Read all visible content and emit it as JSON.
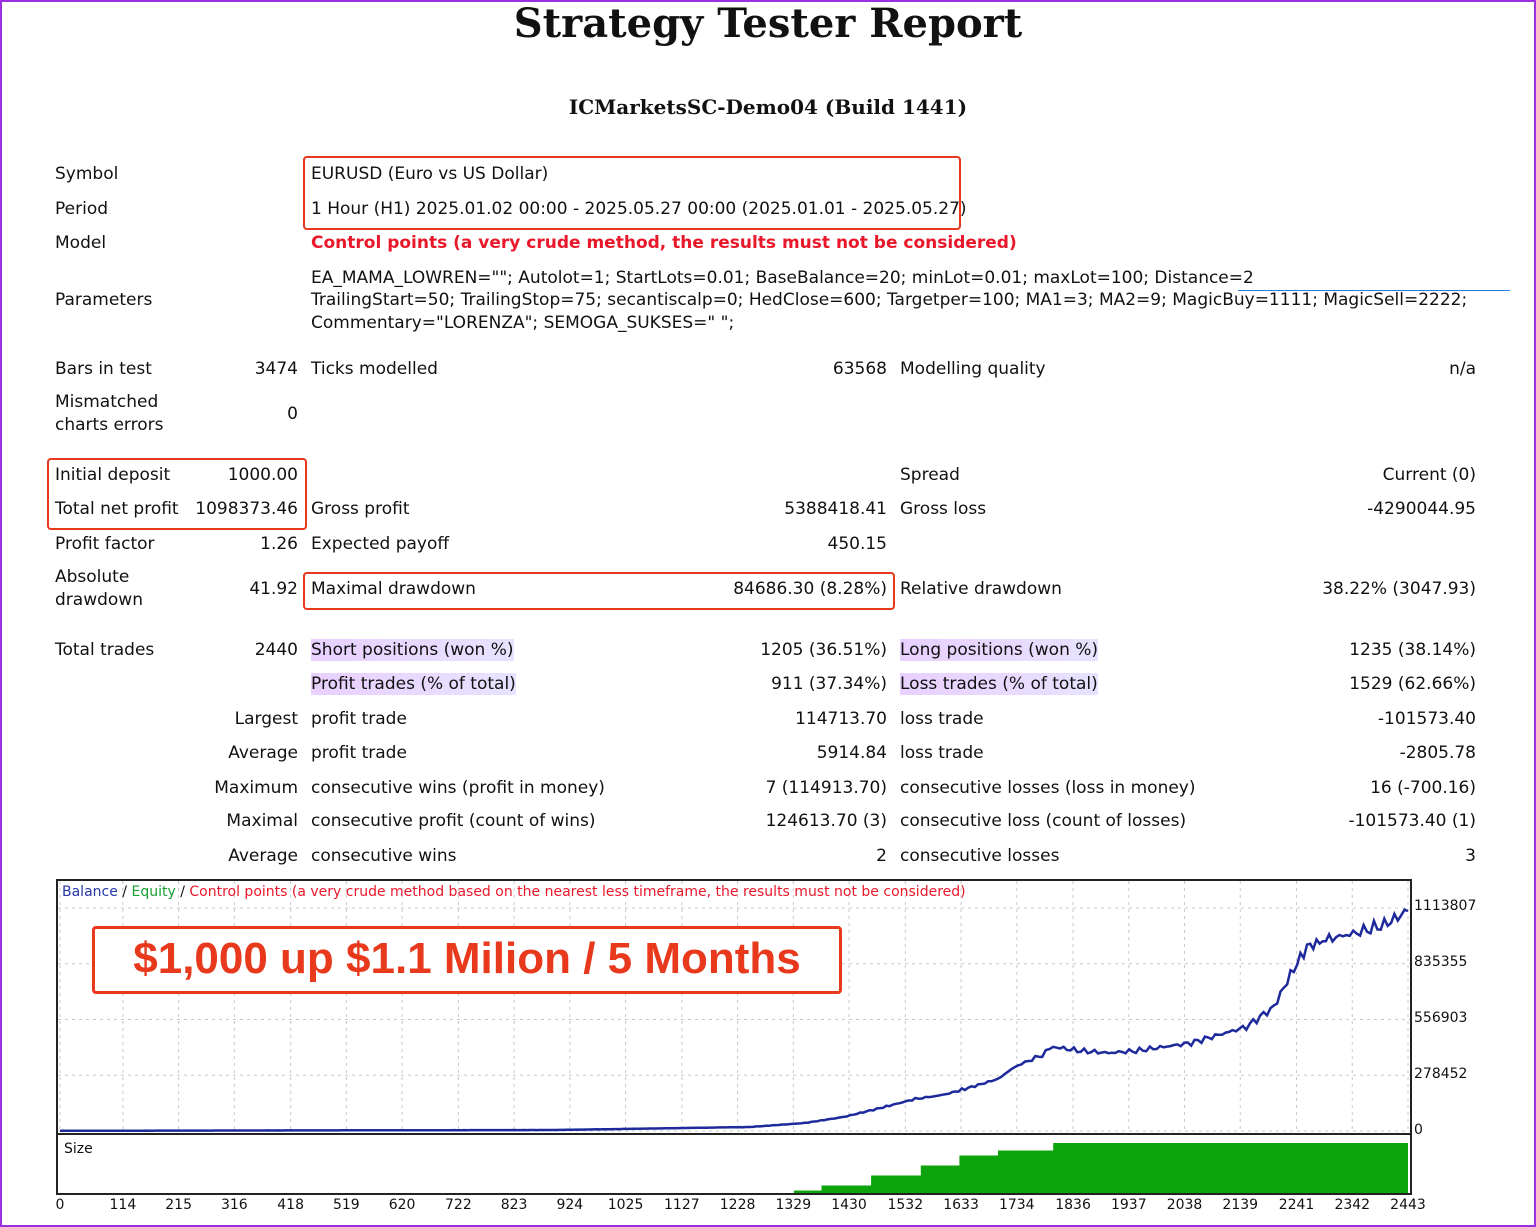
{
  "header": {
    "title": "Strategy Tester Report",
    "server": "ICMarketsSC-Demo04 (Build 1441)"
  },
  "info": {
    "symbol_label": "Symbol",
    "symbol_value": "EURUSD (Euro vs US Dollar)",
    "period_label": "Period",
    "period_value": "1 Hour (H1) 2025.01.02 00:00 - 2025.05.27 00:00 (2025.01.01 - 2025.05.27)",
    "model_label": "Model",
    "model_value": "Control points (a very crude method, the results must not be considered)",
    "parameters_label": "Parameters",
    "parameters_lines": [
      "EA_MAMA_LOWREN=\"\"; Autolot=1; StartLots=0.01; BaseBalance=20; minLot=0.01; maxLot=100; Distance=2",
      "TrailingStart=50; TrailingStop=75; secantiscalp=0; HedClose=600; Targetper=100; MA1=3; MA2=9; MagicBuy=1111; MagicSell=2222;",
      "Commentary=\"LORENZA\"; SEMOGA_SUKSES=\" \";"
    ]
  },
  "stats": {
    "bars_label": "Bars in test",
    "bars_value": "3474",
    "ticks_label": "Ticks modelled",
    "ticks_value": "63568",
    "quality_label": "Modelling quality",
    "quality_value": "n/a",
    "mismatch_label_1": "Mismatched",
    "mismatch_label_2": "charts errors",
    "mismatch_value": "0",
    "initial_label": "Initial deposit",
    "initial_value": "1000.00",
    "spread_label": "Spread",
    "spread_value": "Current (0)",
    "netprofit_label": "Total net profit",
    "netprofit_value": "1098373.46",
    "grossprofit_label": "Gross profit",
    "grossprofit_value": "5388418.41",
    "grossloss_label": "Gross loss",
    "grossloss_value": "-4290044.95",
    "pf_label": "Profit factor",
    "pf_value": "1.26",
    "payoff_label": "Expected payoff",
    "payoff_value": "450.15",
    "absdd_label_1": "Absolute",
    "absdd_label_2": "drawdown",
    "absdd_value": "41.92",
    "maxdd_label": "Maximal drawdown",
    "maxdd_value": "84686.30 (8.28%)",
    "reldd_label": "Relative drawdown",
    "reldd_value": "38.22% (3047.93)",
    "trades_label": "Total trades",
    "trades_value": "2440",
    "short_label": "Short positions (won %)",
    "short_value": "1205 (36.51%)",
    "long_label": "Long positions (won %)",
    "long_value": "1235 (38.14%)",
    "profittrades_label": "Profit trades (% of total)",
    "profittrades_value": "911 (37.34%)",
    "losstrades_label": "Loss trades (% of total)",
    "losstrades_value": "1529 (62.66%)",
    "largest_label": "Largest",
    "largest_profit_label": "profit trade",
    "largest_profit_value": "114713.70",
    "largest_loss_label": "loss trade",
    "largest_loss_value": "-101573.40",
    "average_label": "Average",
    "average_profit_label": "profit trade",
    "average_profit_value": "5914.84",
    "average_loss_label": "loss trade",
    "average_loss_value": "-2805.78",
    "maximum_label": "Maximum",
    "max_wins_label": "consecutive wins (profit in money)",
    "max_wins_value": "7 (114913.70)",
    "max_losses_label": "consecutive losses (loss in money)",
    "max_losses_value": "16 (-700.16)",
    "maximal_label": "Maximal",
    "maximal_profit_label": "consecutive profit (count of wins)",
    "maximal_profit_value": "124613.70 (3)",
    "maximal_loss_label": "consecutive loss (count of losses)",
    "maximal_loss_value": "-101573.40 (1)",
    "avg2_label": "Average",
    "avg_wins_label": "consecutive wins",
    "avg_wins_value": "2",
    "avg_losses_label": "consecutive losses",
    "avg_losses_value": "3"
  },
  "chart": {
    "legend_balance": "Balance",
    "legend_sep1": " / ",
    "legend_equity": "Equity",
    "legend_sep2": " / ",
    "legend_control": "Control points (a very crude method based on the nearest less timeframe, the results must not be considered)",
    "promo": "$1,000 up $1.1 Milion / 5 Months",
    "size_label": "Size",
    "colors": {
      "balance": "#1e2a9c",
      "equity": "#18a030",
      "size": "#0ca30c",
      "accent": "#e8391c"
    }
  },
  "chart_data": {
    "type": "line",
    "title": "",
    "xlabel": "",
    "ylabel": "",
    "x_ticks": [
      "0",
      "114",
      "215",
      "316",
      "418",
      "519",
      "620",
      "722",
      "823",
      "924",
      "1025",
      "1127",
      "1228",
      "1329",
      "1430",
      "1532",
      "1633",
      "1734",
      "1836",
      "1937",
      "2038",
      "2139",
      "2241",
      "2342",
      "2443"
    ],
    "y_ticks": [
      "1113807",
      "835355",
      "556903",
      "278452",
      "0"
    ],
    "ylim": [
      0,
      1113807
    ],
    "xlim": [
      0,
      2443
    ],
    "grid": true,
    "series": [
      {
        "name": "Balance",
        "x": [
          0,
          900,
          1250,
          1350,
          1420,
          1480,
          1550,
          1600,
          1640,
          1700,
          1730,
          1780,
          1800,
          1850,
          1900,
          1950,
          2000,
          2050,
          2100,
          2150,
          2200,
          2230,
          2260,
          2300,
          2350,
          2400,
          2443
        ],
        "values": [
          1000,
          5000,
          20000,
          40000,
          70000,
          110000,
          160000,
          180000,
          210000,
          260000,
          320000,
          380000,
          420000,
          400000,
          390000,
          400000,
          420000,
          440000,
          480000,
          520000,
          620000,
          780000,
          920000,
          960000,
          990000,
          1030000,
          1098373
        ]
      }
    ],
    "size_series": {
      "name": "Size",
      "x": [
        0,
        1330,
        1380,
        1470,
        1560,
        1630,
        1700,
        1800,
        2443
      ],
      "values": [
        0,
        0.05,
        0.15,
        0.35,
        0.55,
        0.75,
        0.85,
        1.0,
        1.0
      ]
    }
  }
}
